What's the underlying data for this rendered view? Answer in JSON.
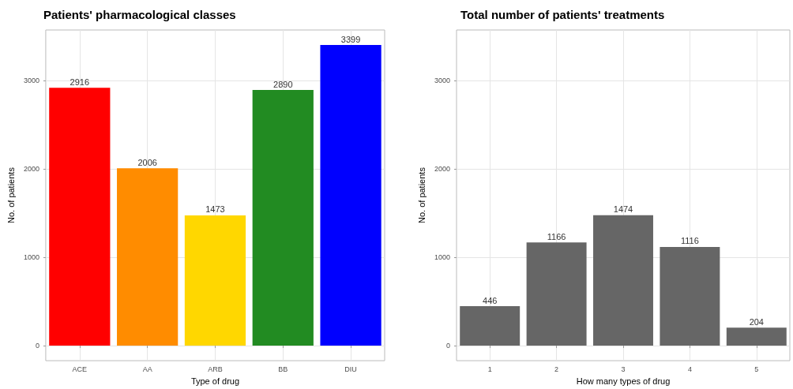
{
  "chart_data": [
    {
      "type": "bar",
      "title": "Patients' pharmacological classes",
      "xlabel": "Type of drug",
      "ylabel": "No. of patients",
      "categories": [
        "ACE",
        "AA",
        "ARB",
        "BB",
        "DIU"
      ],
      "values": [
        2916,
        2006,
        1473,
        2890,
        3399
      ],
      "colors": [
        "#ff0000",
        "#ff8c00",
        "#ffd700",
        "#228b22",
        "#0000ff"
      ],
      "ylim": [
        -170,
        3569
      ],
      "yticks": [
        0,
        1000,
        2000,
        3000
      ],
      "grid": true,
      "data_labels": true
    },
    {
      "type": "bar",
      "title": "Total number of patients' treatments",
      "xlabel": "How many types of drug",
      "ylabel": "No. of patients",
      "categories": [
        "1",
        "2",
        "3",
        "4",
        "5"
      ],
      "values": [
        446,
        1166,
        1474,
        1116,
        204
      ],
      "color": "#666666",
      "ylim": [
        -170,
        3569
      ],
      "yticks": [
        0,
        1000,
        2000,
        3000
      ],
      "grid": true,
      "data_labels": true
    }
  ]
}
